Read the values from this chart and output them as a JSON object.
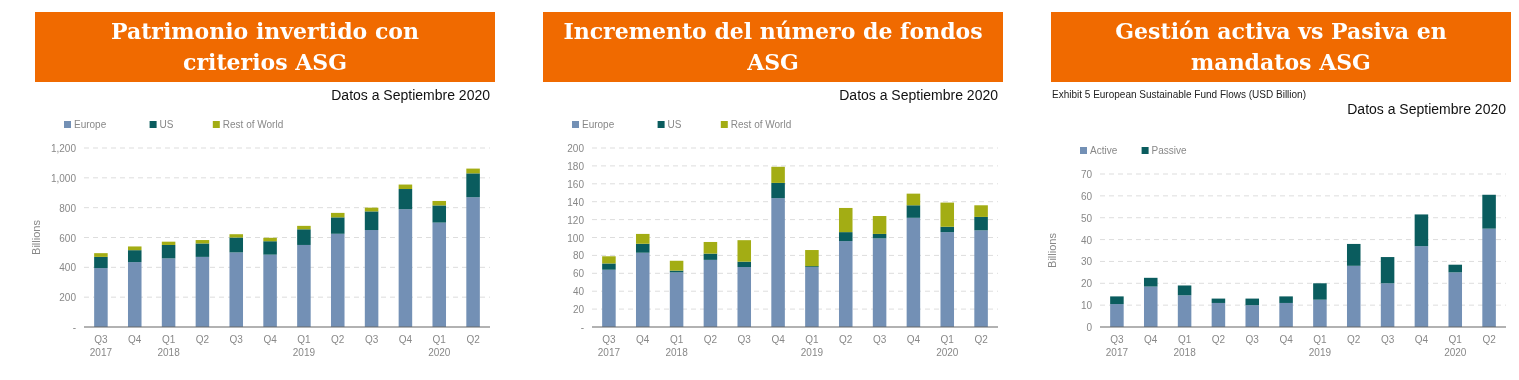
{
  "chart_data": [
    {
      "type": "bar",
      "title": "Patrimonio invertido con criterios ASG",
      "ylabel": "Billions",
      "annotations": [
        "Datos a Septiembre 2020"
      ],
      "categories": [
        "Q3\n2017",
        "Q4",
        "Q1\n2018",
        "Q2",
        "Q3",
        "Q4",
        "Q1\n2019",
        "Q2",
        "Q3",
        "Q4",
        "Q1\n2020",
        "Q2"
      ],
      "stacked": true,
      "legend": "top left",
      "grid": "y",
      "ylim": [
        0,
        1200
      ],
      "yticks": [
        {
          "value": 0,
          "label": "-"
        },
        200,
        400,
        600,
        800,
        {
          "value": 1000,
          "label": "1,000"
        },
        {
          "value": 1200,
          "label": "1,200"
        }
      ],
      "series": [
        {
          "name": "Europe",
          "color": "#7390b5",
          "values": [
            395,
            435,
            460,
            470,
            500,
            485,
            550,
            625,
            650,
            790,
            700,
            870
          ]
        },
        {
          "name": "US",
          "color": "#0a5c5e",
          "values": [
            75,
            80,
            90,
            90,
            100,
            90,
            105,
            110,
            125,
            135,
            115,
            160
          ]
        },
        {
          "name": "Rest of World",
          "color": "#a3ad14",
          "values": [
            25,
            25,
            22,
            23,
            22,
            23,
            23,
            30,
            25,
            30,
            30,
            32
          ]
        }
      ]
    },
    {
      "type": "bar",
      "title": "Incremento del número de fondos ASG",
      "annotations": [
        "Datos a Septiembre 2020"
      ],
      "categories": [
        "Q3\n2017",
        "Q4",
        "Q1\n2018",
        "Q2",
        "Q3",
        "Q4",
        "Q1\n2019",
        "Q2",
        "Q3",
        "Q4",
        "Q1\n2020",
        "Q2"
      ],
      "stacked": true,
      "legend": "top left",
      "grid": "y",
      "ylim": [
        0,
        200
      ],
      "yticks": [
        {
          "value": 0,
          "label": "-"
        },
        20,
        40,
        60,
        80,
        100,
        120,
        140,
        160,
        180,
        200
      ],
      "series": [
        {
          "name": "Europe",
          "color": "#7390b5",
          "values": [
            64,
            83,
            61,
            75,
            67,
            144,
            67,
            96,
            99,
            122,
            106,
            108
          ]
        },
        {
          "name": "US",
          "color": "#0a5c5e",
          "values": [
            7,
            10,
            2,
            7,
            6,
            17,
            1,
            10,
            5,
            14,
            6,
            15
          ]
        },
        {
          "name": "Rest of World",
          "color": "#a3ad14",
          "values": [
            8,
            11,
            11,
            13,
            24,
            18,
            18,
            27,
            20,
            13,
            27,
            13
          ]
        }
      ]
    },
    {
      "type": "bar",
      "title": "Gestión activa vs Pasiva en mandatos ASG",
      "subtitle": "Exhibit 5 European Sustainable Fund Flows (USD Billion)",
      "ylabel": "Billions",
      "annotations": [
        "Datos a Septiembre 2020"
      ],
      "categories": [
        "Q3\n2017",
        "Q4",
        "Q1\n2018",
        "Q2",
        "Q3",
        "Q4",
        "Q1\n2019",
        "Q2",
        "Q3",
        "Q4",
        "Q1\n2020",
        "Q2"
      ],
      "stacked": true,
      "legend": "top left",
      "grid": "y",
      "ylim": [
        0,
        70
      ],
      "yticks": [
        0,
        10,
        20,
        30,
        40,
        50,
        60,
        70
      ],
      "series": [
        {
          "name": "Active",
          "color": "#7390b5",
          "values": [
            10.5,
            18.5,
            14.5,
            11,
            10,
            11,
            12.5,
            28,
            20,
            37,
            25,
            45
          ]
        },
        {
          "name": "Passive",
          "color": "#0a5c5e",
          "values": [
            3.5,
            4,
            4.5,
            2,
            3,
            3,
            7.5,
            10,
            12,
            14.5,
            3.5,
            15.5
          ]
        }
      ]
    }
  ]
}
